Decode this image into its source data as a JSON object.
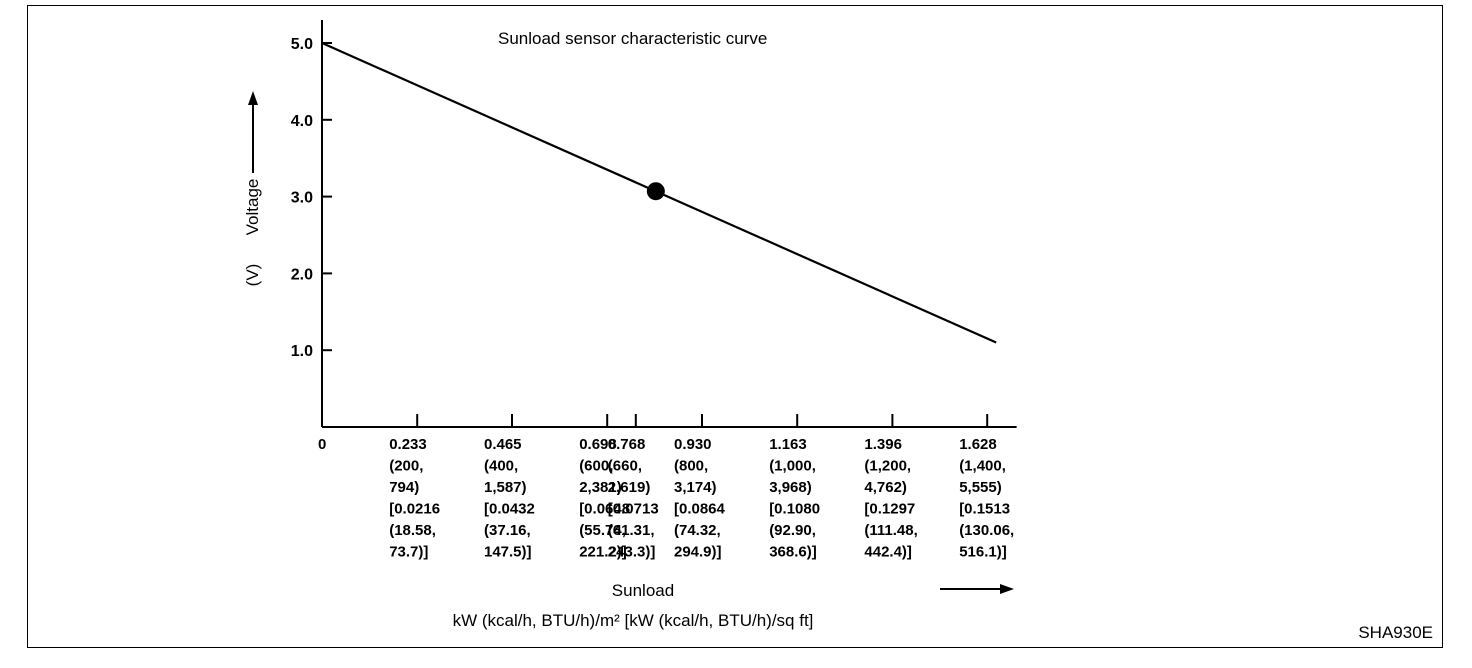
{
  "figure_id": "SHA930E",
  "chart_data": {
    "type": "line",
    "title": "Sunload sensor characteristic curve",
    "ylabel": "Voltage",
    "yunit": "(V)",
    "xlabel": "Sunload",
    "xunit_line": "kW (kcal/h, BTU/h)/m²  [kW (kcal/h, BTU/h)/sq ft]",
    "xlim": [
      0,
      1.7
    ],
    "ylim": [
      0,
      5.3
    ],
    "y_ticks": [
      {
        "value": 1.0,
        "label": "1.0"
      },
      {
        "value": 2.0,
        "label": "2.0"
      },
      {
        "value": 3.0,
        "label": "3.0"
      },
      {
        "value": 4.0,
        "label": "4.0"
      },
      {
        "value": 5.0,
        "label": "5.0"
      }
    ],
    "x_ticks": [
      {
        "value": 0,
        "lines": [
          "0"
        ]
      },
      {
        "value": 0.233,
        "lines": [
          "0.233",
          "(200,",
          "794)",
          "[0.0216",
          "(18.58,",
          "73.7)]"
        ]
      },
      {
        "value": 0.465,
        "lines": [
          "0.465",
          "(400,",
          "1,587)",
          "[0.0432",
          "(37.16,",
          "147.5)]"
        ]
      },
      {
        "value": 0.698,
        "lines": [
          "0.698",
          "(600,",
          "2,381)",
          "[0.0648",
          "(55.74,",
          "221.2)]"
        ]
      },
      {
        "value": 0.768,
        "lines": [
          "0.768",
          "(660,",
          "2,619)",
          "[0.0713",
          "(61.31,",
          "243.3)]"
        ]
      },
      {
        "value": 0.93,
        "lines": [
          "0.930",
          "(800,",
          "3,174)",
          "[0.0864",
          "(74.32,",
          "294.9)]"
        ]
      },
      {
        "value": 1.163,
        "lines": [
          "1.163",
          "(1,000,",
          "3,968)",
          "[0.1080",
          "(92.90,",
          "368.6)]"
        ]
      },
      {
        "value": 1.396,
        "lines": [
          "1.396",
          "(1,200,",
          "4,762)",
          "[0.1297",
          "(111.48,",
          "442.4)]"
        ]
      },
      {
        "value": 1.628,
        "lines": [
          "1.628",
          "(1,400,",
          "5,555)",
          "[0.1513",
          "(130.06,",
          "516.1)]"
        ]
      }
    ],
    "series": [
      {
        "points": [
          [
            0,
            5.0
          ],
          [
            1.65,
            1.1
          ]
        ]
      }
    ],
    "marker": {
      "x": 0.817,
      "y": 3.07
    },
    "grid": false
  }
}
